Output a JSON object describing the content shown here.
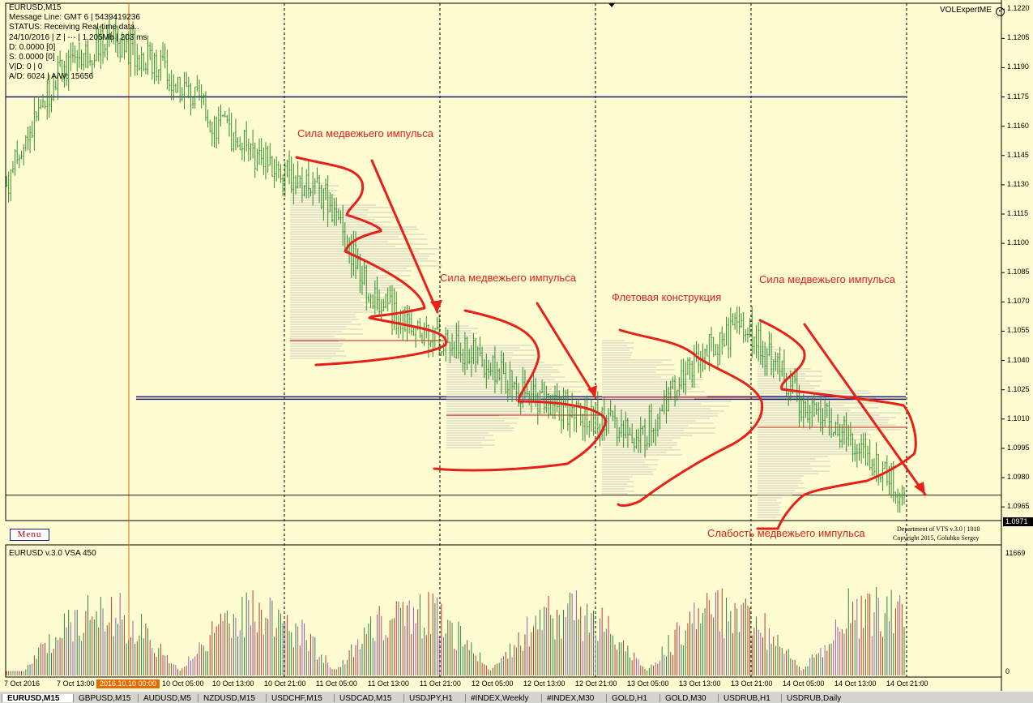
{
  "chart_info": {
    "symbol_line": "EURUSD,M15",
    "message_line": "Message Line: GMT 6  |  5439419236",
    "status": "STATUS:  Receiving Real-time data..",
    "date_line": "24/10/2016 | Z | -·- | 1.205Mb | 203 ms",
    "d_line": "D: 0.0000  [0]",
    "s_line": "S: 0.0000  [0]",
    "vd_line": "V|D: 0 | 0",
    "ad_line": "A/D: 6024 | A/W: 15656"
  },
  "brand": {
    "top_right": "VOLExpertME",
    "menu_label": "Menu",
    "department": "Department of VTS  v.3.0 | 1010",
    "copyright": "Copyright 2015, Golubko Sergey"
  },
  "price_axis": {
    "labels": [
      "1.1220",
      "1.1205",
      "1.1190",
      "1.1175",
      "1.1160",
      "1.1145",
      "1.1130",
      "1.1115",
      "1.1100",
      "1.1085",
      "1.1070",
      "1.1055",
      "1.1040",
      "1.1025",
      "1.1010",
      "1.0995",
      "1.0980",
      "1.0965"
    ],
    "current_price": "1.0971"
  },
  "volume_panel": {
    "title": "EURUSD v.3.0 VSA 450",
    "max_label": "11669",
    "min_label": "0"
  },
  "time_axis": {
    "labels": [
      "7 Oct 2016",
      "7 Oct 13:00",
      "10 Oct 05:00",
      "10 Oct 13:00",
      "10 Oct 21:00",
      "11 Oct 05:00",
      "11 Oct 13:00",
      "11 Oct 21:00",
      "12 Oct 05:00",
      "12 Oct 13:00",
      "12 Oct 21:00",
      "13 Oct 05:00",
      "13 Oct 13:00",
      "13 Oct 21:00",
      "14 Oct 05:00",
      "14 Oct 13:00",
      "14 Oct 21:00"
    ],
    "highlight": "2016.10.10 00:00"
  },
  "annotations": {
    "a1": "Сила медвежьего импульса",
    "a2": "Сила медвежьего импульса",
    "a3": "Флетовая конструкция",
    "a4": "Сила медвежьего импульса",
    "a5": "Слабость медвежьего импульса"
  },
  "tabs": [
    "EURUSD,M15",
    "GBPUSD,M15",
    "AUDUSD,M5",
    "NZDUSD,M15",
    "USDCHF,M15",
    "USDCAD,M15",
    "USDJPY,H1",
    "#INDEX,Weekly",
    "#INDEX,M30",
    "GOLD,H1",
    "GOLD,M30",
    "USDRUB,H1",
    "USDRUB,Daily"
  ],
  "colors": {
    "background": "#fffcd1",
    "candle": "#2f8f2f",
    "annotation": "#e0201c",
    "level_line": "#1a1a70",
    "highlight": "#e66a00"
  },
  "chart_data": {
    "type": "candlestick",
    "symbol": "EURUSD",
    "timeframe": "M15",
    "ylim": [
      1.0958,
      1.1223
    ],
    "close_path": [
      [
        "7 Oct 2016",
        1.113
      ],
      [
        "7 Oct 13:00",
        1.119
      ],
      [
        "2016.10.10 00:00",
        1.1205
      ],
      [
        "10 Oct 05:00",
        1.119
      ],
      [
        "10 Oct 13:00",
        1.116
      ],
      [
        "10 Oct 21:00",
        1.114
      ],
      [
        "11 Oct 05:00",
        1.1125
      ],
      [
        "11 Oct 13:00",
        1.107
      ],
      [
        "11 Oct 21:00",
        1.1055
      ],
      [
        "12 Oct 05:00",
        1.104
      ],
      [
        "12 Oct 13:00",
        1.102
      ],
      [
        "12 Oct 21:00",
        1.1012
      ],
      [
        "13 Oct 05:00",
        1.1
      ],
      [
        "13 Oct 13:00",
        1.104
      ],
      [
        "13 Oct 21:00",
        1.1058
      ],
      [
        "14 Oct 05:00",
        1.102
      ],
      [
        "14 Oct 13:00",
        1.1
      ],
      [
        "14 Oct 21:00",
        1.0971
      ]
    ],
    "horizontal_levels": [
      1.1175,
      1.1021
    ],
    "volume_range": [
      0,
      11669
    ]
  }
}
